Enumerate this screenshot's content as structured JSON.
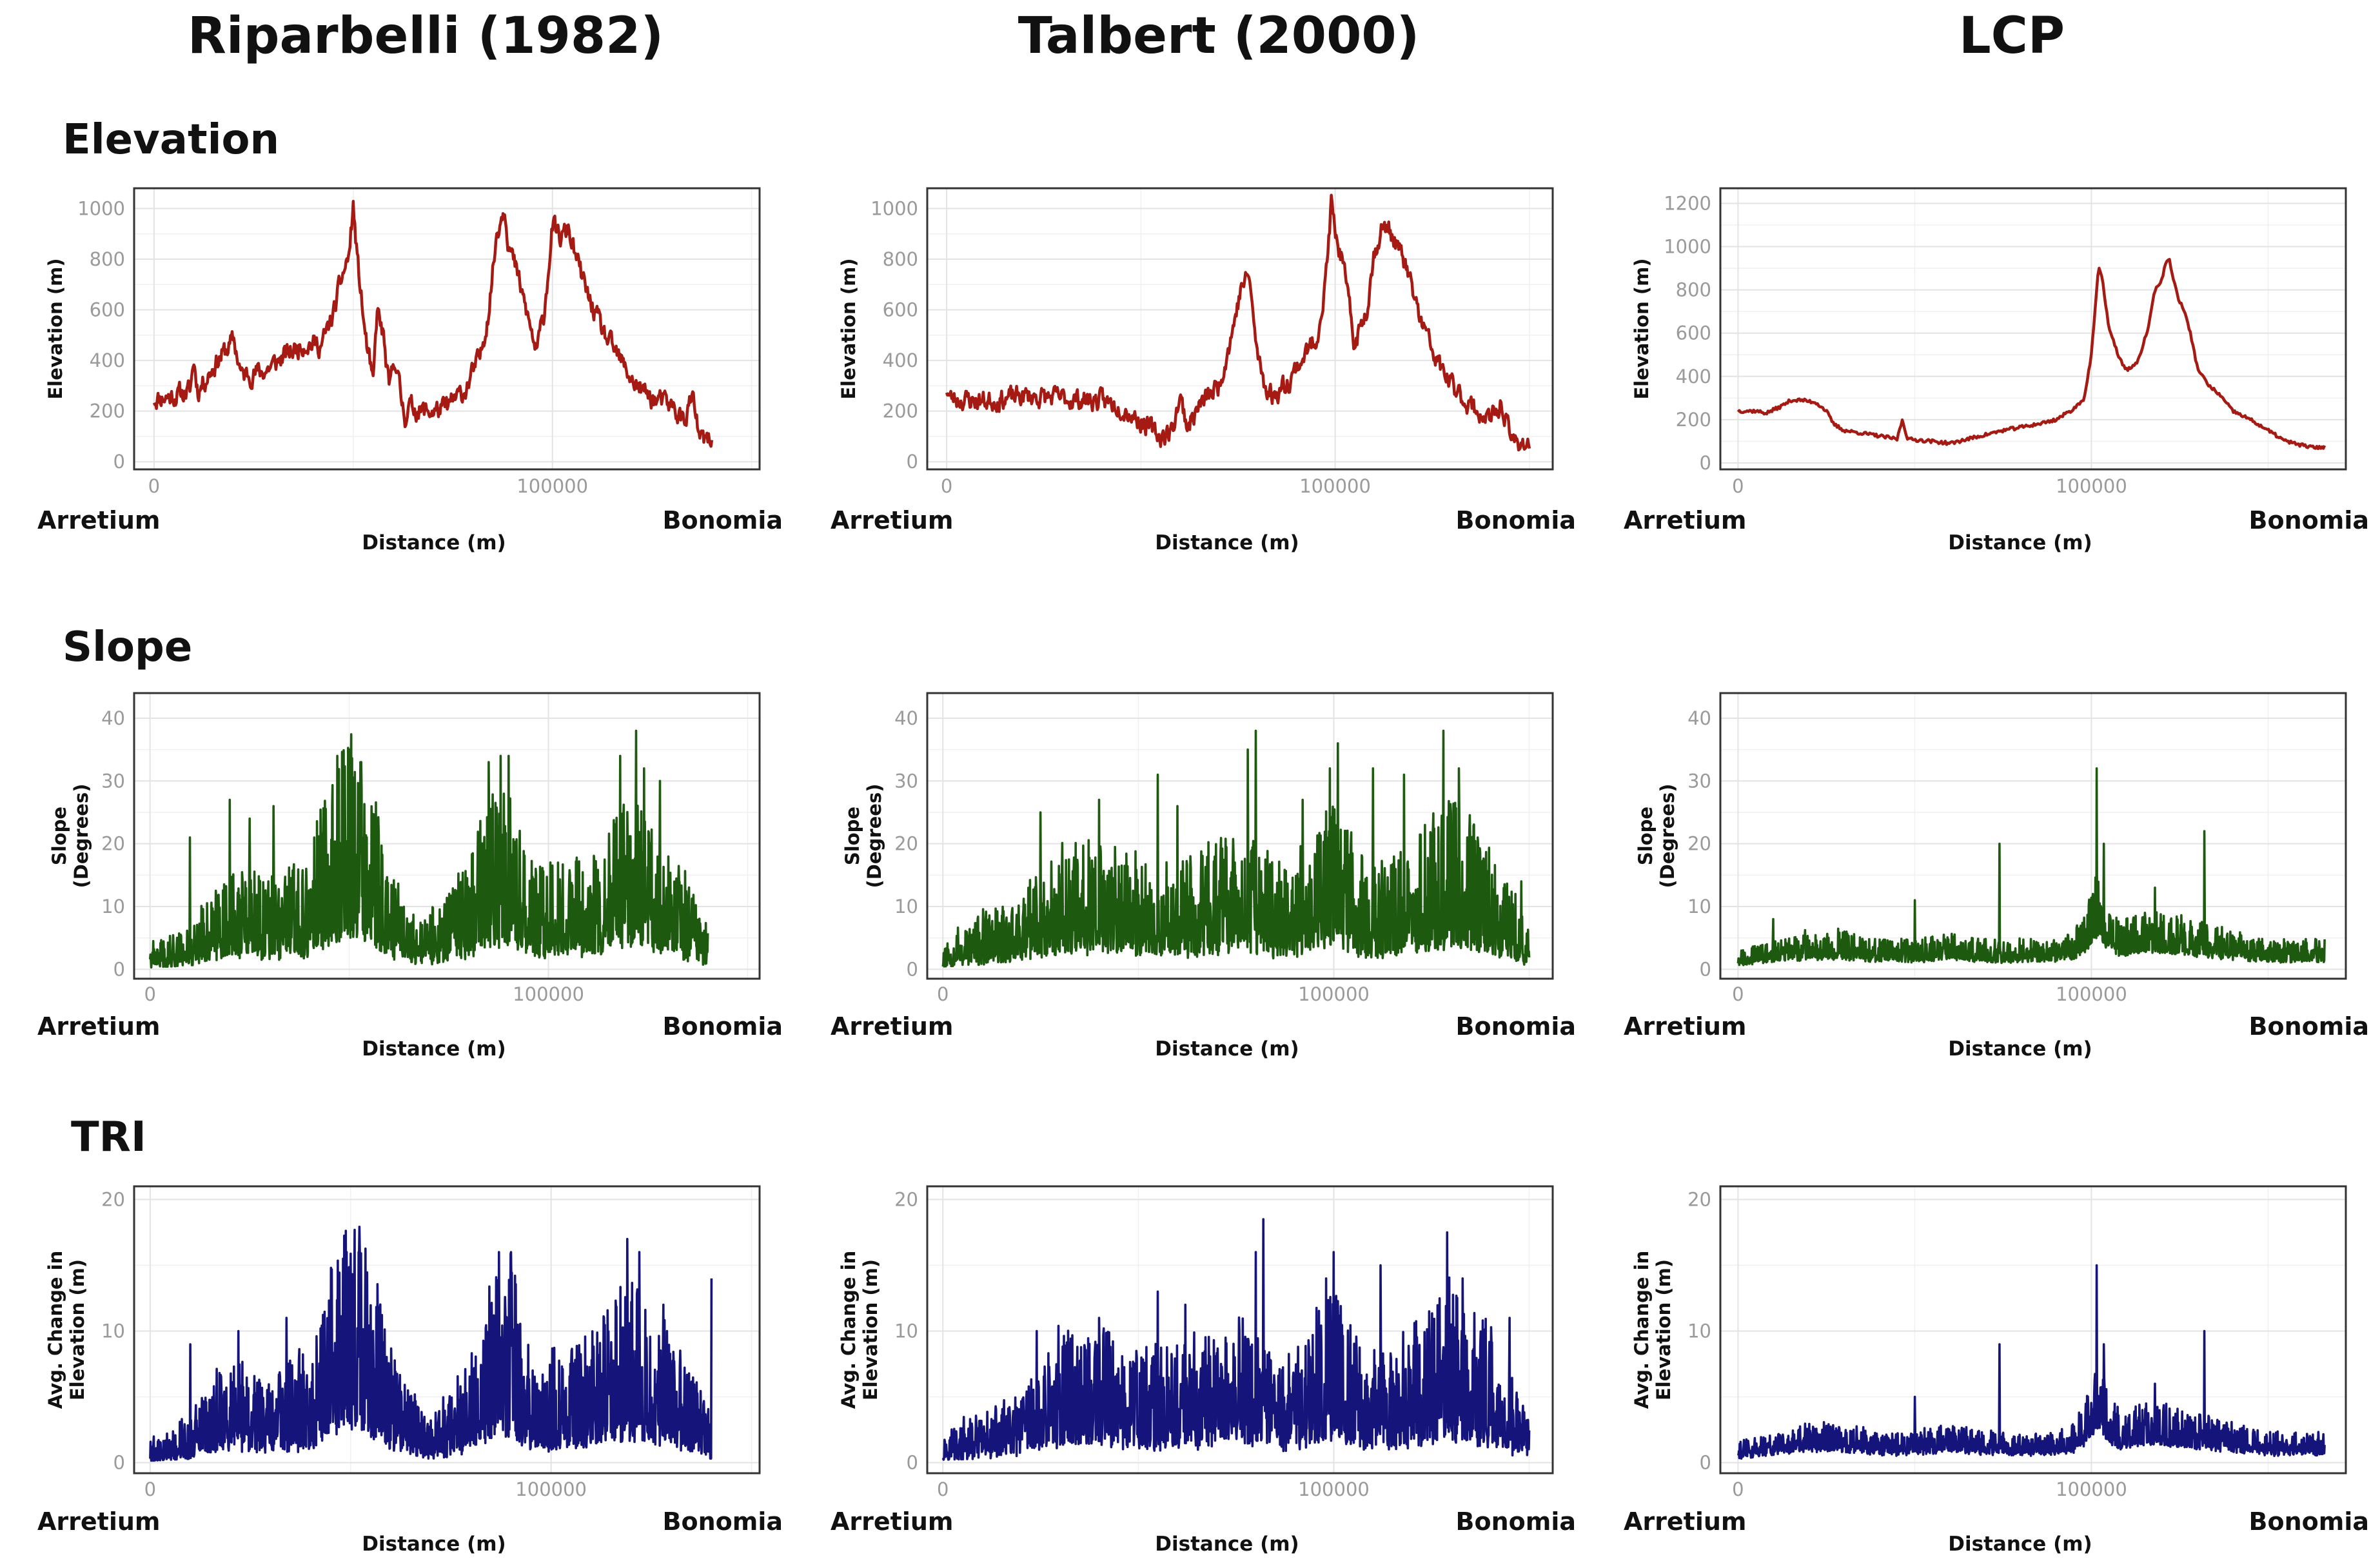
{
  "columns": [
    "Riparbelli (1982)",
    "Talbert (2000)",
    "LCP"
  ],
  "rows": [
    "Elevation",
    "Slope",
    "TRI"
  ],
  "endpoints": {
    "start": "Arretium",
    "end": "Bonomia"
  },
  "colors": {
    "Elevation": "#a51b14",
    "Slope": "#1d5a10",
    "TRI": "#14147a"
  },
  "chart_data": [
    {
      "id": "elev-rip",
      "type": "line",
      "row": "Elevation",
      "column": "Riparbelli (1982)",
      "xlabel": "Distance (m)",
      "ylabel": [
        "Elevation (m)"
      ],
      "xlim": [
        -5000,
        152000
      ],
      "ylim": [
        -30,
        1080
      ],
      "xticks": [
        0,
        100000
      ],
      "xtick_labels": [
        "0",
        "100000"
      ],
      "yticks": [
        0,
        200,
        400,
        600,
        800,
        1000
      ],
      "ytick_labels": [
        "0",
        "200",
        "400",
        "600",
        "800",
        "1000"
      ],
      "noise": "elev",
      "seed": 11,
      "x": [
        0,
        5000,
        9000,
        10000,
        11000,
        15000,
        18000,
        20000,
        22000,
        28000,
        33000,
        38000,
        42000,
        45000,
        47000,
        49000,
        50000,
        51000,
        53000,
        55000,
        56000,
        57500,
        59000,
        60500,
        62000,
        63000,
        64000,
        67000,
        70000,
        73000,
        78000,
        82000,
        84000,
        86000,
        88000,
        89000,
        91000,
        94000,
        96000,
        98000,
        100000,
        102000,
        104000,
        106000,
        109000,
        113000,
        117000,
        121000,
        125000,
        130000,
        133000,
        135000,
        137000,
        140000
      ],
      "y": [
        250,
        260,
        280,
        400,
        280,
        380,
        440,
        480,
        340,
        360,
        420,
        470,
        460,
        580,
        720,
        820,
        1010,
        800,
        500,
        300,
        600,
        500,
        280,
        420,
        250,
        180,
        220,
        200,
        200,
        210,
        280,
        420,
        600,
        900,
        1020,
        860,
        750,
        560,
        430,
        600,
        930,
        880,
        920,
        800,
        650,
        500,
        400,
        300,
        250,
        220,
        160,
        260,
        90,
        75
      ]
    },
    {
      "id": "elev-tal",
      "type": "line",
      "row": "Elevation",
      "column": "Talbert (2000)",
      "xlabel": "Distance (m)",
      "ylabel": [
        "Elevation (m)"
      ],
      "xlim": [
        -5000,
        156000
      ],
      "ylim": [
        -30,
        1080
      ],
      "xticks": [
        0,
        100000
      ],
      "xtick_labels": [
        "0",
        "100000"
      ],
      "yticks": [
        0,
        200,
        400,
        600,
        800,
        1000
      ],
      "ytick_labels": [
        "0",
        "200",
        "400",
        "600",
        "800",
        "1000"
      ],
      "noise": "elev",
      "seed": 23,
      "x": [
        0,
        1000,
        10000,
        20000,
        30000,
        40000,
        45000,
        50000,
        55000,
        58000,
        60000,
        62000,
        65000,
        70000,
        73000,
        76000,
        78000,
        79000,
        80000,
        82000,
        84000,
        88000,
        92000,
        95000,
        97000,
        98000,
        99000,
        100000,
        102000,
        105000,
        108000,
        110000,
        112000,
        114000,
        118000,
        122000,
        126000,
        130000,
        135000,
        140000,
        143000,
        145000,
        150000
      ],
      "y": [
        290,
        250,
        240,
        260,
        250,
        240,
        220,
        160,
        100,
        120,
        260,
        140,
        220,
        300,
        480,
        700,
        730,
        550,
        420,
        300,
        260,
        320,
        420,
        480,
        640,
        800,
        1020,
        900,
        780,
        460,
        600,
        820,
        920,
        920,
        780,
        560,
        400,
        300,
        220,
        160,
        230,
        90,
        70
      ]
    },
    {
      "id": "elev-lcp",
      "type": "line",
      "row": "Elevation",
      "column": "LCP",
      "xlabel": "Distance (m)",
      "ylabel": [
        "Elevation (m)"
      ],
      "xlim": [
        -5000,
        172000
      ],
      "ylim": [
        -30,
        1270
      ],
      "xticks": [
        0,
        100000
      ],
      "xtick_labels": [
        "0",
        "100000"
      ],
      "yticks": [
        0,
        200,
        400,
        600,
        800,
        1000,
        1200
      ],
      "ytick_labels": [
        "0",
        "200",
        "400",
        "600",
        "800",
        "1000",
        "1200"
      ],
      "noise": "smooth",
      "seed": 37,
      "x": [
        0,
        5000,
        8000,
        12000,
        15000,
        18000,
        22000,
        25000,
        27000,
        30000,
        38000,
        45000,
        46500,
        48000,
        55000,
        60000,
        65000,
        75000,
        85000,
        90000,
        95000,
        98000,
        100000,
        101000,
        102000,
        103000,
        105000,
        108000,
        110000,
        113000,
        116000,
        118000,
        120000,
        121000,
        122000,
        123000,
        125000,
        126000,
        128000,
        130000,
        133000,
        136000,
        140000,
        145000,
        150000,
        155000,
        160000,
        163000,
        166000
      ],
      "y": [
        240,
        240,
        230,
        260,
        290,
        290,
        280,
        240,
        180,
        150,
        130,
        110,
        200,
        110,
        100,
        90,
        110,
        150,
        180,
        200,
        250,
        300,
        500,
        700,
        900,
        860,
        620,
        480,
        430,
        460,
        620,
        800,
        850,
        920,
        950,
        860,
        740,
        720,
        600,
        440,
        360,
        320,
        240,
        200,
        150,
        100,
        80,
        70,
        75
      ]
    },
    {
      "id": "slope-rip",
      "type": "line",
      "row": "Slope",
      "column": "Riparbelli (1982)",
      "xlabel": "Distance (m)",
      "ylabel": [
        "Slope",
        "(Degrees)"
      ],
      "xlim": [
        -4000,
        153000
      ],
      "ylim": [
        -1.5,
        44
      ],
      "xticks": [
        0,
        100000
      ],
      "xtick_labels": [
        "0",
        "100000"
      ],
      "yticks": [
        0,
        10,
        20,
        30,
        40
      ],
      "ytick_labels": [
        "0",
        "10",
        "20",
        "30",
        "40"
      ],
      "noise": "spiky",
      "seed": 41,
      "x": [
        0,
        10000,
        20000,
        30000,
        40000,
        45000,
        50000,
        55000,
        60000,
        65000,
        70000,
        75000,
        80000,
        85000,
        90000,
        95000,
        100000,
        105000,
        110000,
        115000,
        120000,
        125000,
        130000,
        135000,
        140000
      ],
      "y": [
        2,
        4,
        10,
        8,
        10,
        18,
        22,
        18,
        10,
        6,
        5,
        7,
        10,
        16,
        18,
        10,
        10,
        10,
        11,
        13,
        16,
        14,
        12,
        8,
        4
      ]
    },
    {
      "id": "slope-tal",
      "type": "line",
      "row": "Slope",
      "column": "Talbert (2000)",
      "xlabel": "Distance (m)",
      "ylabel": [
        "Slope",
        "(Degrees)"
      ],
      "xlim": [
        -4000,
        156000
      ],
      "ylim": [
        -1.5,
        44
      ],
      "xticks": [
        0,
        100000
      ],
      "xtick_labels": [
        "0",
        "100000"
      ],
      "yticks": [
        0,
        10,
        20,
        30,
        40
      ],
      "ytick_labels": [
        "0",
        "10",
        "20",
        "30",
        "40"
      ],
      "noise": "spiky",
      "seed": 53,
      "x": [
        0,
        10000,
        20000,
        30000,
        40000,
        50000,
        60000,
        70000,
        75000,
        80000,
        85000,
        90000,
        95000,
        100000,
        105000,
        110000,
        115000,
        120000,
        125000,
        130000,
        135000,
        140000,
        145000,
        150000
      ],
      "y": [
        3,
        5,
        7,
        12,
        12,
        11,
        10,
        12,
        13,
        12,
        10,
        10,
        14,
        16,
        12,
        10,
        11,
        12,
        14,
        16,
        14,
        12,
        8,
        4
      ]
    },
    {
      "id": "slope-lcp",
      "type": "line",
      "row": "Slope",
      "column": "LCP",
      "xlabel": "Distance (m)",
      "ylabel": [
        "Slope",
        "(Degrees)"
      ],
      "xlim": [
        -5000,
        172000
      ],
      "ylim": [
        -1.5,
        44
      ],
      "xticks": [
        0,
        100000
      ],
      "xtick_labels": [
        "0",
        "100000"
      ],
      "yticks": [
        0,
        10,
        20,
        30,
        40
      ],
      "ytick_labels": [
        "0",
        "10",
        "20",
        "30",
        "40"
      ],
      "noise": "lowspiky",
      "seed": 67,
      "x": [
        0,
        10000,
        20000,
        30000,
        40000,
        50000,
        60000,
        70000,
        80000,
        90000,
        95000,
        100000,
        102000,
        104000,
        108000,
        115000,
        120000,
        130000,
        140000,
        150000,
        160000,
        166000
      ],
      "y": [
        2,
        3,
        4,
        4,
        3,
        3,
        4,
        3,
        3,
        3,
        4,
        8,
        12,
        8,
        5,
        6,
        6,
        5,
        4,
        3,
        3,
        3
      ]
    },
    {
      "id": "tri-rip",
      "type": "line",
      "row": "TRI",
      "column": "Riparbelli (1982)",
      "xlabel": "Distance (m)",
      "ylabel": [
        "Avg. Change in",
        "Elevation (m)"
      ],
      "xlim": [
        -4000,
        152000
      ],
      "ylim": [
        -0.8,
        21
      ],
      "xticks": [
        0,
        100000
      ],
      "xtick_labels": [
        "0",
        "100000"
      ],
      "yticks": [
        0,
        10,
        20
      ],
      "ytick_labels": [
        "0",
        "10",
        "20"
      ],
      "noise": "spiky",
      "seed": 79,
      "x": [
        0,
        10000,
        20000,
        30000,
        40000,
        45000,
        50000,
        55000,
        60000,
        65000,
        70000,
        75000,
        80000,
        85000,
        90000,
        95000,
        100000,
        105000,
        110000,
        115000,
        120000,
        125000,
        130000,
        135000,
        140000
      ],
      "y": [
        1,
        2,
        5,
        4,
        5,
        9,
        11,
        9,
        5,
        3,
        2,
        3,
        5,
        8,
        9,
        5,
        5,
        5,
        6,
        7,
        8,
        7,
        6,
        4,
        2
      ]
    },
    {
      "id": "tri-tal",
      "type": "line",
      "row": "TRI",
      "column": "Talbert (2000)",
      "xlabel": "Distance (m)",
      "ylabel": [
        "Avg. Change in",
        "Elevation (m)"
      ],
      "xlim": [
        -4000,
        156000
      ],
      "ylim": [
        -0.8,
        21
      ],
      "xticks": [
        0,
        100000
      ],
      "xtick_labels": [
        "0",
        "100000"
      ],
      "yticks": [
        0,
        10,
        20
      ],
      "ytick_labels": [
        "0",
        "10",
        "20"
      ],
      "noise": "spiky",
      "seed": 97,
      "x": [
        0,
        10000,
        20000,
        30000,
        40000,
        50000,
        60000,
        70000,
        75000,
        80000,
        85000,
        90000,
        95000,
        100000,
        105000,
        110000,
        115000,
        120000,
        125000,
        130000,
        135000,
        140000,
        145000,
        150000
      ],
      "y": [
        1.5,
        2,
        3,
        6,
        6,
        5,
        5,
        6,
        7,
        6,
        5,
        5,
        7,
        8,
        6,
        5,
        5,
        6,
        7,
        8,
        7,
        6,
        4,
        2
      ]
    },
    {
      "id": "tri-lcp",
      "type": "line",
      "row": "TRI",
      "column": "LCP",
      "xlabel": "Distance (m)",
      "ylabel": [
        "Avg. Change in",
        "Elevation (m)"
      ],
      "xlim": [
        -5000,
        172000
      ],
      "ylim": [
        -0.8,
        21
      ],
      "xticks": [
        0,
        100000
      ],
      "xtick_labels": [
        "0",
        "100000"
      ],
      "yticks": [
        0,
        10,
        20
      ],
      "ytick_labels": [
        "0",
        "10",
        "20"
      ],
      "noise": "lowspiky",
      "seed": 113,
      "x": [
        0,
        10000,
        20000,
        30000,
        40000,
        50000,
        60000,
        70000,
        80000,
        90000,
        95000,
        100000,
        102000,
        104000,
        108000,
        115000,
        120000,
        130000,
        140000,
        150000,
        160000,
        166000
      ],
      "y": [
        1,
        1.5,
        2,
        2,
        1.5,
        1.5,
        2,
        1.5,
        1.5,
        1.5,
        2,
        4,
        6,
        4,
        2.5,
        3,
        3,
        2.5,
        2,
        1.5,
        1.5,
        1.5
      ]
    }
  ],
  "spikes": {
    "elev-lcp": [],
    "slope-rip": [
      [
        47000,
        34
      ],
      [
        50000,
        35
      ],
      [
        53000,
        33
      ],
      [
        85000,
        33
      ],
      [
        88000,
        34
      ],
      [
        90000,
        34
      ],
      [
        118000,
        34
      ],
      [
        122000,
        38
      ],
      [
        124000,
        32
      ],
      [
        128000,
        30
      ],
      [
        20000,
        27
      ],
      [
        10000,
        21
      ],
      [
        25000,
        24
      ],
      [
        31000,
        26
      ]
    ],
    "slope-tal": [
      [
        80000,
        38
      ],
      [
        78000,
        35
      ],
      [
        101000,
        36
      ],
      [
        99000,
        32
      ],
      [
        92000,
        27
      ],
      [
        128000,
        38
      ],
      [
        132000,
        32
      ],
      [
        110000,
        32
      ],
      [
        55000,
        31
      ],
      [
        40000,
        27
      ],
      [
        25000,
        25
      ],
      [
        60000,
        26
      ],
      [
        118000,
        31
      ],
      [
        148000,
        14
      ]
    ],
    "slope-lcp": [
      [
        74000,
        20
      ],
      [
        101500,
        32
      ],
      [
        103500,
        20
      ],
      [
        132000,
        22
      ],
      [
        118000,
        13
      ],
      [
        10000,
        8
      ],
      [
        50000,
        11
      ]
    ],
    "tri-rip": [
      [
        49000,
        16
      ],
      [
        52000,
        16
      ],
      [
        87000,
        16
      ],
      [
        90000,
        16
      ],
      [
        119000,
        17
      ],
      [
        122000,
        16
      ],
      [
        128000,
        12
      ],
      [
        10000,
        9
      ],
      [
        22000,
        10
      ],
      [
        34000,
        11
      ],
      [
        140000,
        14
      ]
    ],
    "tri-tal": [
      [
        82000,
        18.5
      ],
      [
        80000,
        16
      ],
      [
        100000,
        16
      ],
      [
        98000,
        14
      ],
      [
        129000,
        17.5
      ],
      [
        133000,
        14
      ],
      [
        55000,
        13
      ],
      [
        112000,
        15
      ],
      [
        40000,
        11
      ],
      [
        24000,
        10
      ],
      [
        62000,
        12
      ],
      [
        145000,
        11
      ]
    ],
    "tri-lcp": [
      [
        74000,
        9
      ],
      [
        101500,
        15
      ],
      [
        103500,
        9
      ],
      [
        132000,
        10
      ],
      [
        118000,
        6
      ],
      [
        50000,
        5
      ]
    ]
  }
}
